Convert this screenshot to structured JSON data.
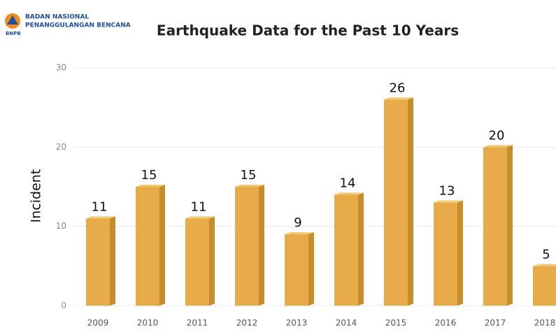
{
  "logo": {
    "line1": "BADAN NASIONAL",
    "line2": "PENANGGULANGAN BENCANA",
    "abbr": "BNPB"
  },
  "chart_data": {
    "type": "bar",
    "title": "Earthquake Data for the Past 10 Years",
    "y_label": "Incident",
    "categories": [
      "2009",
      "2010",
      "2011",
      "2012",
      "2013",
      "2014",
      "2015",
      "2016",
      "2017",
      "2018"
    ],
    "values": [
      11,
      15,
      11,
      15,
      9,
      14,
      26,
      13,
      20,
      5
    ],
    "color": "#e8ab4a",
    "ylim": [
      0,
      30
    ],
    "yticks": [
      0,
      10,
      20,
      30
    ],
    "grid": true
  }
}
